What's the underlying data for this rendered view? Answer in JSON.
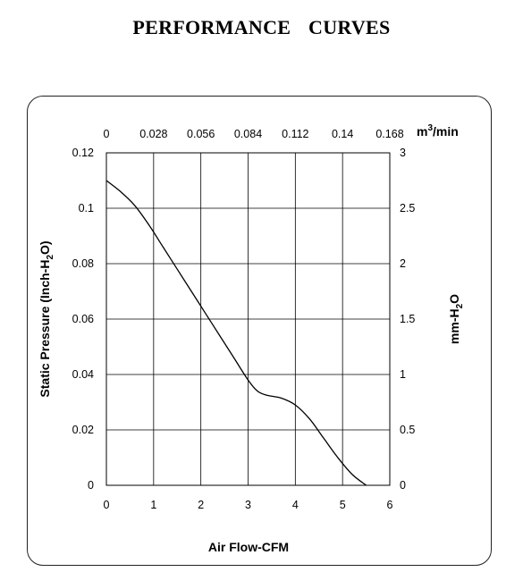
{
  "chart_data": {
    "type": "line",
    "title": "PERFORMANCE CURVES",
    "xlabel": "Air Flow-CFM",
    "ylabel": "Static Pressure (Inch-H",
    "ylabel_sub": "2",
    "ylabel_end": "O)",
    "top_axis_unit": "m",
    "top_axis_unit_sup": "3",
    "top_axis_unit_end": "/min",
    "right_axis_label": "mm-H",
    "right_axis_label_sub": "2",
    "right_axis_label_end": "O",
    "xlim": [
      0,
      6
    ],
    "ylim": [
      0,
      0.12
    ],
    "x_ticks": [
      "0",
      "1",
      "2",
      "3",
      "4",
      "5",
      "6"
    ],
    "y_ticks": [
      "0",
      "0.02",
      "0.04",
      "0.06",
      "0.08",
      "0.1",
      "0.12"
    ],
    "top_ticks": [
      "0",
      "0.028",
      "0.056",
      "0.084",
      "0.112",
      "0.14",
      "0.168"
    ],
    "right_ticks": [
      "0",
      "0.5",
      "1",
      "1.5",
      "2",
      "2.5",
      "3"
    ],
    "grid": true,
    "series": [
      {
        "x": [
          0,
          0.3,
          0.6,
          0.9,
          1.2,
          1.5,
          1.8,
          2.1,
          2.4,
          2.7,
          3.0,
          3.2,
          3.4,
          3.7,
          4.0,
          4.3,
          4.6,
          4.9,
          5.2,
          5.5
        ],
        "values": [
          0.11,
          0.106,
          0.101,
          0.094,
          0.086,
          0.078,
          0.07,
          0.062,
          0.054,
          0.046,
          0.038,
          0.034,
          0.0325,
          0.0315,
          0.029,
          0.024,
          0.017,
          0.01,
          0.004,
          0.0
        ]
      }
    ]
  }
}
